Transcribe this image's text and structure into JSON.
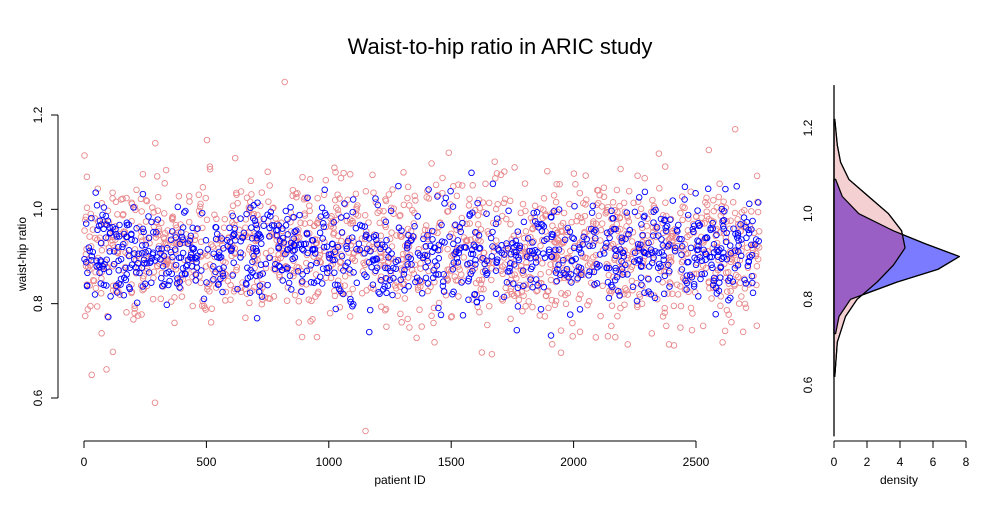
{
  "chart_data": [
    {
      "type": "scatter",
      "title": "Waist-to-hip ratio in ARIC study",
      "xlabel": "patient ID",
      "ylabel": "waist-hip ratio",
      "xlim": [
        0,
        2800
      ],
      "ylim": [
        0.56,
        1.26
      ],
      "xticks": [
        "0",
        "500",
        "1000",
        "1500",
        "2000",
        "2500"
      ],
      "yticks": [
        "0.6",
        "0.8",
        "1.0",
        "1.2"
      ],
      "grid": false,
      "legend": "none",
      "series": [
        {
          "color": "#e8888c",
          "marker": "open-circle",
          "n_points": 1500,
          "mean": 0.91,
          "sd": 0.075,
          "range": [
            0.53,
            1.27
          ]
        },
        {
          "color": "#0000ff",
          "marker": "open-circle",
          "n_points": 1000,
          "mean": 0.905,
          "sd": 0.055,
          "range": [
            0.73,
            1.09
          ]
        }
      ],
      "notable_points": [
        {
          "x": 820,
          "y": 1.27
        },
        {
          "x": 1150,
          "y": 0.53
        },
        {
          "x": 2660,
          "y": 1.17
        },
        {
          "x": 290,
          "y": 0.59
        },
        {
          "x": 1490,
          "y": 1.12
        }
      ]
    },
    {
      "type": "area",
      "xlabel": "density",
      "ylabel": "",
      "xlim": [
        0,
        8
      ],
      "ylim": [
        0.48,
        1.3
      ],
      "xticks": [
        "0",
        "2",
        "4",
        "6",
        "8"
      ],
      "yticks": [
        "0.6",
        "0.8",
        "1.0",
        "1.2"
      ],
      "grid": false,
      "orientation": "horizontal",
      "series": [
        {
          "color": "#0000ff",
          "fill": "#7b7bff",
          "y": [
            0.72,
            0.76,
            0.8,
            0.84,
            0.87,
            0.9,
            0.93,
            0.96,
            1.0,
            1.04,
            1.08
          ],
          "density": [
            0.1,
            0.3,
            1.0,
            3.8,
            6.3,
            7.6,
            5.5,
            3.6,
            1.5,
            0.5,
            0.1
          ]
        },
        {
          "color": "#e8888c",
          "fill": "#f0c0c4",
          "y": [
            0.62,
            0.7,
            0.76,
            0.8,
            0.84,
            0.88,
            0.92,
            0.96,
            1.0,
            1.04,
            1.08,
            1.12,
            1.16,
            1.22
          ],
          "density": [
            0.05,
            0.2,
            0.7,
            1.4,
            2.6,
            3.6,
            4.3,
            4.1,
            3.3,
            2.1,
            0.9,
            0.4,
            0.2,
            0.05
          ]
        }
      ],
      "overlap_color": "#9a5fc4"
    }
  ]
}
